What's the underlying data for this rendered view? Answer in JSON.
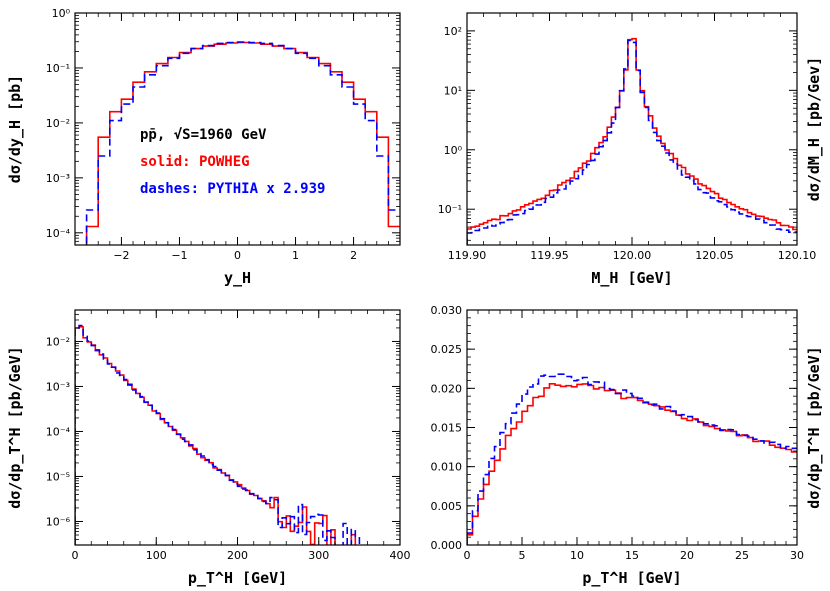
{
  "chart_data": [
    {
      "type": "line",
      "id": "yH",
      "ylog": true,
      "xlim": [
        -2.8,
        2.8
      ],
      "ylim": [
        6e-05,
        1
      ],
      "xticks": [
        -2,
        -1,
        0,
        1,
        2
      ],
      "xtick_labels": [
        "−2",
        "−1",
        "0",
        "1",
        "2"
      ],
      "yticks": [
        0.0001,
        0.001,
        0.01,
        0.1,
        1
      ],
      "ytick_labels": [
        "10⁻⁴",
        "10⁻³",
        "10⁻²",
        "10⁻¹",
        "10⁰"
      ],
      "xlabel": "y_H",
      "ylabel": "dσ/dy_H [pb]",
      "annotations": [
        {
          "text": "pp̄, √S=1960 GeV",
          "color": "#000000"
        },
        {
          "text": "solid: POWHEG",
          "color": "#ff0000"
        },
        {
          "text": "dashes: PYTHIA x 2.939",
          "color": "#0000ff"
        }
      ],
      "series": [
        {
          "style": "solid",
          "color": "#ff0000",
          "edges": [
            -2.8,
            -2.6,
            -2.4,
            -2.2,
            -2.0,
            -1.8,
            -1.6,
            -1.4,
            -1.2,
            -1.0,
            -0.8,
            -0.6,
            -0.4,
            -0.2,
            0,
            0.2,
            0.4,
            0.6,
            0.8,
            1.0,
            1.2,
            1.4,
            1.6,
            1.8,
            2.0,
            2.2,
            2.4,
            2.6,
            2.8
          ],
          "values": [
            5e-05,
            0.00013,
            0.0055,
            0.016,
            0.027,
            0.055,
            0.085,
            0.12,
            0.155,
            0.19,
            0.225,
            0.25,
            0.27,
            0.285,
            0.29,
            0.285,
            0.27,
            0.25,
            0.225,
            0.19,
            0.155,
            0.12,
            0.085,
            0.055,
            0.027,
            0.016,
            0.0055,
            0.00013
          ]
        },
        {
          "style": "dashed",
          "color": "#0000ff",
          "edges": [
            -2.8,
            -2.6,
            -2.4,
            -2.2,
            -2.0,
            -1.8,
            -1.6,
            -1.4,
            -1.2,
            -1.0,
            -0.8,
            -0.6,
            -0.4,
            -0.2,
            0,
            0.2,
            0.4,
            0.6,
            0.8,
            1.0,
            1.2,
            1.4,
            1.6,
            1.8,
            2.0,
            2.2,
            2.4,
            2.6,
            2.8
          ],
          "values": [
            5e-05,
            0.00026,
            0.0025,
            0.011,
            0.022,
            0.045,
            0.075,
            0.11,
            0.15,
            0.185,
            0.225,
            0.255,
            0.28,
            0.29,
            0.295,
            0.29,
            0.28,
            0.255,
            0.225,
            0.185,
            0.15,
            0.11,
            0.075,
            0.045,
            0.022,
            0.011,
            0.0025,
            0.00026
          ]
        }
      ]
    },
    {
      "type": "line",
      "id": "MH",
      "ylog": true,
      "xlim": [
        119.9,
        120.1
      ],
      "ylim": [
        0.025,
        200
      ],
      "xticks": [
        119.9,
        119.95,
        120.0,
        120.05,
        120.1
      ],
      "xtick_labels": [
        "119.90",
        "119.95",
        "120.00",
        "120.05",
        "120.10"
      ],
      "yticks": [
        0.1,
        1,
        10,
        100
      ],
      "ytick_labels": [
        "10⁻¹",
        "10⁰",
        "10¹",
        "10²"
      ],
      "xlabel": "M_H [GeV]",
      "ylabel": "dσ/dM_H [pb/Gev]",
      "series": [
        {
          "style": "solid",
          "color": "#ff0000",
          "shape": "breitwigner",
          "peak": 95,
          "gamma": 0.0021,
          "x0": 120.0,
          "bins": 80,
          "tailboost": 1.12,
          "seed": 3
        },
        {
          "style": "dashed",
          "color": "#0000ff",
          "shape": "breitwigner",
          "peak": 92,
          "gamma": 0.0021,
          "x0": 120.0,
          "bins": 80,
          "tailboost": 0.95,
          "seed": 7
        }
      ]
    },
    {
      "type": "line",
      "id": "pTwide",
      "ylog": true,
      "xlim": [
        0,
        400
      ],
      "ylim": [
        3e-07,
        0.05
      ],
      "xticks": [
        0,
        100,
        200,
        300,
        400
      ],
      "xtick_labels": [
        "0",
        "100",
        "200",
        "300",
        "400"
      ],
      "yticks": [
        1e-06,
        1e-05,
        0.0001,
        0.001,
        0.01
      ],
      "ytick_labels": [
        "10⁻⁶",
        "10⁻⁵",
        "10⁻⁴",
        "10⁻³",
        "10⁻²"
      ],
      "xlabel": "p_T^H [GeV]",
      "ylabel": "dσ/dp_T^H [pb/GeV]",
      "series": [
        {
          "style": "solid",
          "color": "#ff0000",
          "shape": "pttail",
          "bins": 80,
          "seed": 11
        },
        {
          "style": "dashed",
          "color": "#0000ff",
          "shape": "pttail",
          "bins": 80,
          "seed": 23
        }
      ]
    },
    {
      "type": "line",
      "id": "pTlow",
      "ylog": false,
      "xlim": [
        0,
        30
      ],
      "ylim": [
        0,
        0.03
      ],
      "xticks": [
        0,
        5,
        10,
        15,
        20,
        25,
        30
      ],
      "xtick_labels": [
        "0",
        "5",
        "10",
        "15",
        "20",
        "25",
        "30"
      ],
      "yticks": [
        0,
        0.005,
        0.01,
        0.015,
        0.02,
        0.025,
        0.03
      ],
      "ytick_labels": [
        "0.000",
        "0.005",
        "0.010",
        "0.015",
        "0.020",
        "0.025",
        "0.030"
      ],
      "xlabel": "p_T^H [GeV]",
      "ylabel": "dσ/dp_T^H [pb/GeV]",
      "series": [
        {
          "style": "solid",
          "color": "#ff0000",
          "shape": "ptlow",
          "peak": 0.0242,
          "xpeak": 7.5,
          "bins": 60,
          "seed": 5
        },
        {
          "style": "dashed",
          "color": "#0000ff",
          "shape": "ptlow",
          "peak": 0.0252,
          "xpeak": 6.5,
          "bins": 60,
          "seed": 9
        }
      ]
    }
  ]
}
